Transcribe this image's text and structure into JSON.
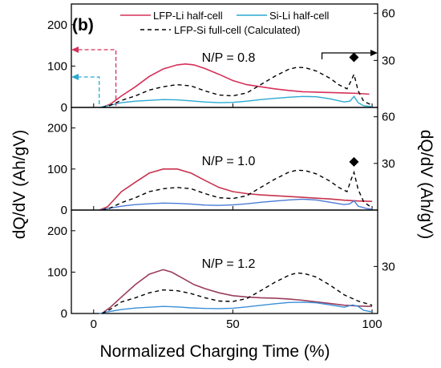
{
  "chart_data": {
    "type": "line",
    "panel_label": "(b)",
    "xlabel": "Normalized Charging Time (%)",
    "ylabel_left": "dQ/dV (Ah/gV)",
    "ylabel_right": "dQ/dV (Ah/gV)",
    "xlim": [
      -8,
      102
    ],
    "x_ticks": [
      "0",
      "50",
      "100"
    ],
    "legend": [
      {
        "name": "LFP-Li half-cell",
        "color": "#d6305a",
        "dash": "solid"
      },
      {
        "name": "Si-Li half-cell",
        "color": "#2aa9d2",
        "dash": "solid"
      },
      {
        "name": "LFP-Si full-cell (Calculated)",
        "color": "#000000",
        "dash": "dashed"
      }
    ],
    "panels": [
      {
        "label": "N/P = 0.8",
        "left_ylim": [
          0,
          250
        ],
        "left_ticks": [
          "0",
          "100",
          "200"
        ],
        "right_ylim": [
          0,
          66
        ],
        "right_ticks": [
          "30",
          "60"
        ],
        "lfp_color": "#d6305a",
        "si_color": "#2aa9d2",
        "marker": {
          "x": 93.5,
          "y": 32
        },
        "arrows": true,
        "lfp": [
          [
            3,
            0
          ],
          [
            6,
            8
          ],
          [
            10,
            28
          ],
          [
            15,
            50
          ],
          [
            20,
            75
          ],
          [
            25,
            93
          ],
          [
            30,
            103
          ],
          [
            33,
            105
          ],
          [
            36,
            103
          ],
          [
            40,
            94
          ],
          [
            45,
            80
          ],
          [
            50,
            65
          ],
          [
            55,
            55
          ],
          [
            60,
            50
          ],
          [
            65,
            45
          ],
          [
            70,
            41
          ],
          [
            75,
            38
          ],
          [
            80,
            37
          ],
          [
            85,
            36
          ],
          [
            90,
            35
          ],
          [
            95,
            34
          ],
          [
            99,
            32
          ]
        ],
        "si": [
          [
            2,
            0
          ],
          [
            5,
            1
          ],
          [
            10,
            3
          ],
          [
            15,
            4
          ],
          [
            20,
            4.5
          ],
          [
            25,
            5
          ],
          [
            30,
            4.8
          ],
          [
            35,
            4.2
          ],
          [
            40,
            3.5
          ],
          [
            45,
            3
          ],
          [
            50,
            3.2
          ],
          [
            55,
            4
          ],
          [
            60,
            5
          ],
          [
            65,
            5.8
          ],
          [
            70,
            6.5
          ],
          [
            75,
            7
          ],
          [
            80,
            6.8
          ],
          [
            85,
            5.5
          ],
          [
            90,
            3.5
          ],
          [
            92,
            4
          ],
          [
            93.5,
            7
          ],
          [
            95,
            3
          ],
          [
            97,
            1
          ],
          [
            100,
            0.5
          ]
        ],
        "full": [
          [
            3,
            0
          ],
          [
            6,
            5
          ],
          [
            10,
            17
          ],
          [
            15,
            28
          ],
          [
            20,
            42
          ],
          [
            25,
            50
          ],
          [
            30,
            55
          ],
          [
            35,
            52
          ],
          [
            40,
            40
          ],
          [
            45,
            30
          ],
          [
            50,
            28
          ],
          [
            55,
            35
          ],
          [
            60,
            55
          ],
          [
            65,
            75
          ],
          [
            70,
            92
          ],
          [
            73,
            97
          ],
          [
            76,
            96
          ],
          [
            80,
            88
          ],
          [
            85,
            70
          ],
          [
            88,
            55
          ],
          [
            91,
            45
          ],
          [
            92.5,
            65
          ],
          [
            93.5,
            80
          ],
          [
            95,
            40
          ],
          [
            97,
            15
          ],
          [
            100,
            5
          ]
        ]
      },
      {
        "label": "N/P = 1.0",
        "left_ylim": [
          0,
          250
        ],
        "left_ticks": [
          "0",
          "100",
          "200"
        ],
        "right_ylim": [
          0,
          66
        ],
        "right_ticks": [
          "30",
          "60"
        ],
        "lfp_color": "#c7334d",
        "si_color": "#4a7bd6",
        "marker": {
          "x": 93.5,
          "y": 31
        },
        "arrows": false,
        "lfp": [
          [
            2,
            0
          ],
          [
            5,
            8
          ],
          [
            10,
            45
          ],
          [
            15,
            68
          ],
          [
            20,
            90
          ],
          [
            25,
            100
          ],
          [
            30,
            100
          ],
          [
            35,
            90
          ],
          [
            40,
            72
          ],
          [
            45,
            55
          ],
          [
            50,
            45
          ],
          [
            55,
            40
          ],
          [
            60,
            37
          ],
          [
            65,
            35
          ],
          [
            70,
            33
          ],
          [
            75,
            31
          ],
          [
            80,
            29
          ],
          [
            85,
            27
          ],
          [
            90,
            24
          ],
          [
            95,
            22
          ],
          [
            100,
            21
          ]
        ],
        "si": [
          [
            2,
            0
          ],
          [
            5,
            1
          ],
          [
            10,
            2.5
          ],
          [
            15,
            3.5
          ],
          [
            20,
            4
          ],
          [
            25,
            4.5
          ],
          [
            30,
            4.3
          ],
          [
            35,
            3.8
          ],
          [
            40,
            3.2
          ],
          [
            45,
            3
          ],
          [
            50,
            3.3
          ],
          [
            55,
            4
          ],
          [
            60,
            5
          ],
          [
            65,
            5.8
          ],
          [
            70,
            6.5
          ],
          [
            75,
            7
          ],
          [
            80,
            6.5
          ],
          [
            85,
            5
          ],
          [
            90,
            3.5
          ],
          [
            92,
            4
          ],
          [
            93.5,
            6
          ],
          [
            95,
            2.5
          ],
          [
            98,
            1
          ],
          [
            100,
            0.5
          ]
        ],
        "full": [
          [
            3,
            0
          ],
          [
            6,
            5
          ],
          [
            10,
            18
          ],
          [
            15,
            30
          ],
          [
            20,
            45
          ],
          [
            25,
            52
          ],
          [
            30,
            55
          ],
          [
            35,
            52
          ],
          [
            40,
            40
          ],
          [
            45,
            30
          ],
          [
            50,
            28
          ],
          [
            55,
            35
          ],
          [
            60,
            55
          ],
          [
            65,
            75
          ],
          [
            70,
            92
          ],
          [
            73,
            97
          ],
          [
            76,
            96
          ],
          [
            80,
            88
          ],
          [
            85,
            70
          ],
          [
            88,
            55
          ],
          [
            91,
            45
          ],
          [
            92.5,
            75
          ],
          [
            93.5,
            92
          ],
          [
            95,
            50
          ],
          [
            97,
            20
          ],
          [
            100,
            5
          ]
        ]
      },
      {
        "label": "N/P = 1.2",
        "left_ylim": [
          0,
          250
        ],
        "left_ticks": [
          "0",
          "100",
          "200"
        ],
        "right_ylim": [
          0,
          66
        ],
        "right_ticks": [
          "30"
        ],
        "lfp_color": "#9a3e5c",
        "si_color": "#3b8fd8",
        "marker": null,
        "arrows": false,
        "lfp": [
          [
            3,
            0
          ],
          [
            6,
            15
          ],
          [
            10,
            40
          ],
          [
            15,
            70
          ],
          [
            20,
            95
          ],
          [
            25,
            106
          ],
          [
            28,
            100
          ],
          [
            32,
            85
          ],
          [
            36,
            70
          ],
          [
            40,
            60
          ],
          [
            45,
            50
          ],
          [
            50,
            43
          ],
          [
            55,
            40
          ],
          [
            60,
            38
          ],
          [
            65,
            37
          ],
          [
            70,
            35
          ],
          [
            75,
            32
          ],
          [
            80,
            28
          ],
          [
            85,
            24
          ],
          [
            90,
            20
          ],
          [
            95,
            18
          ],
          [
            100,
            17
          ]
        ],
        "si": [
          [
            2,
            0
          ],
          [
            5,
            1
          ],
          [
            10,
            2.5
          ],
          [
            15,
            3.5
          ],
          [
            20,
            4
          ],
          [
            25,
            4.5
          ],
          [
            30,
            4.2
          ],
          [
            35,
            3.6
          ],
          [
            40,
            3.2
          ],
          [
            45,
            3.1
          ],
          [
            50,
            3.4
          ],
          [
            55,
            4.2
          ],
          [
            60,
            5.2
          ],
          [
            65,
            6.2
          ],
          [
            70,
            7
          ],
          [
            75,
            7.2
          ],
          [
            80,
            6.8
          ],
          [
            85,
            5.5
          ],
          [
            90,
            4
          ],
          [
            93,
            5.5
          ],
          [
            95,
            4.5
          ],
          [
            97,
            2
          ],
          [
            100,
            1
          ]
        ],
        "full": [
          [
            3,
            0
          ],
          [
            6,
            10
          ],
          [
            10,
            28
          ],
          [
            15,
            38
          ],
          [
            20,
            50
          ],
          [
            25,
            57
          ],
          [
            30,
            55
          ],
          [
            35,
            48
          ],
          [
            40,
            38
          ],
          [
            45,
            30
          ],
          [
            50,
            29
          ],
          [
            55,
            36
          ],
          [
            60,
            55
          ],
          [
            65,
            75
          ],
          [
            70,
            92
          ],
          [
            73,
            98
          ],
          [
            76,
            96
          ],
          [
            80,
            88
          ],
          [
            85,
            68
          ],
          [
            90,
            45
          ],
          [
            95,
            30
          ],
          [
            100,
            20
          ]
        ]
      }
    ]
  }
}
